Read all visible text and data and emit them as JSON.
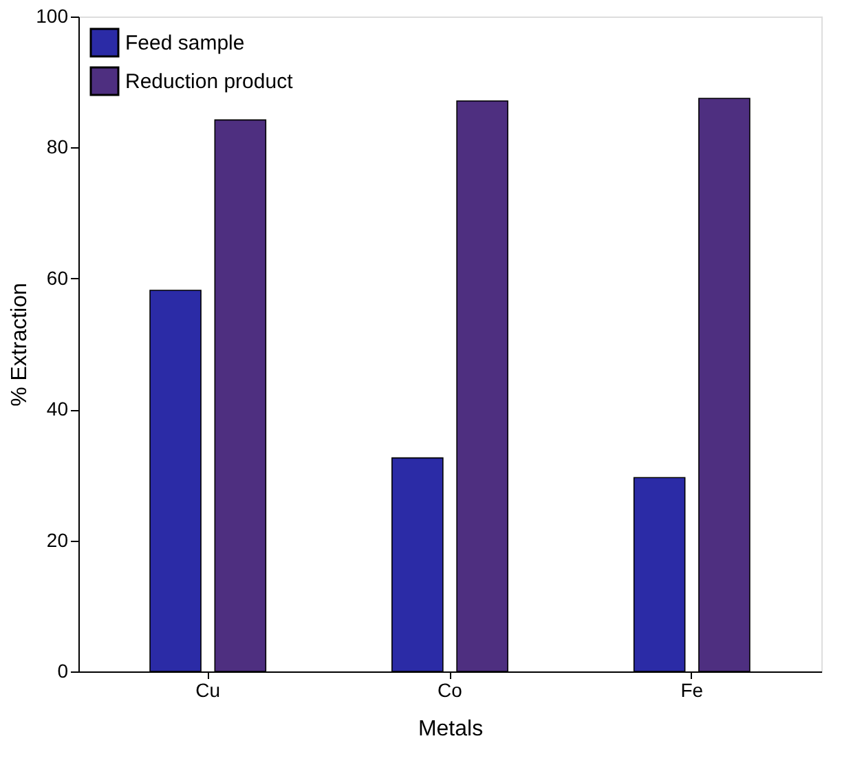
{
  "chart_data": {
    "type": "bar",
    "xlabel": "Metals",
    "ylabel": "% Extraction",
    "categories": [
      "Cu",
      "Co",
      "Fe"
    ],
    "series": [
      {
        "name": "Feed sample",
        "color": "#2b2ba6",
        "values": [
          58.2,
          32.6,
          29.6
        ]
      },
      {
        "name": "Reduction product",
        "color": "#4e2f80",
        "values": [
          84.2,
          87.1,
          87.5
        ]
      }
    ],
    "ylim": [
      0,
      100
    ],
    "yticks": [
      0,
      20,
      40,
      60,
      80,
      100
    ],
    "grid": false,
    "legend": "top left"
  }
}
